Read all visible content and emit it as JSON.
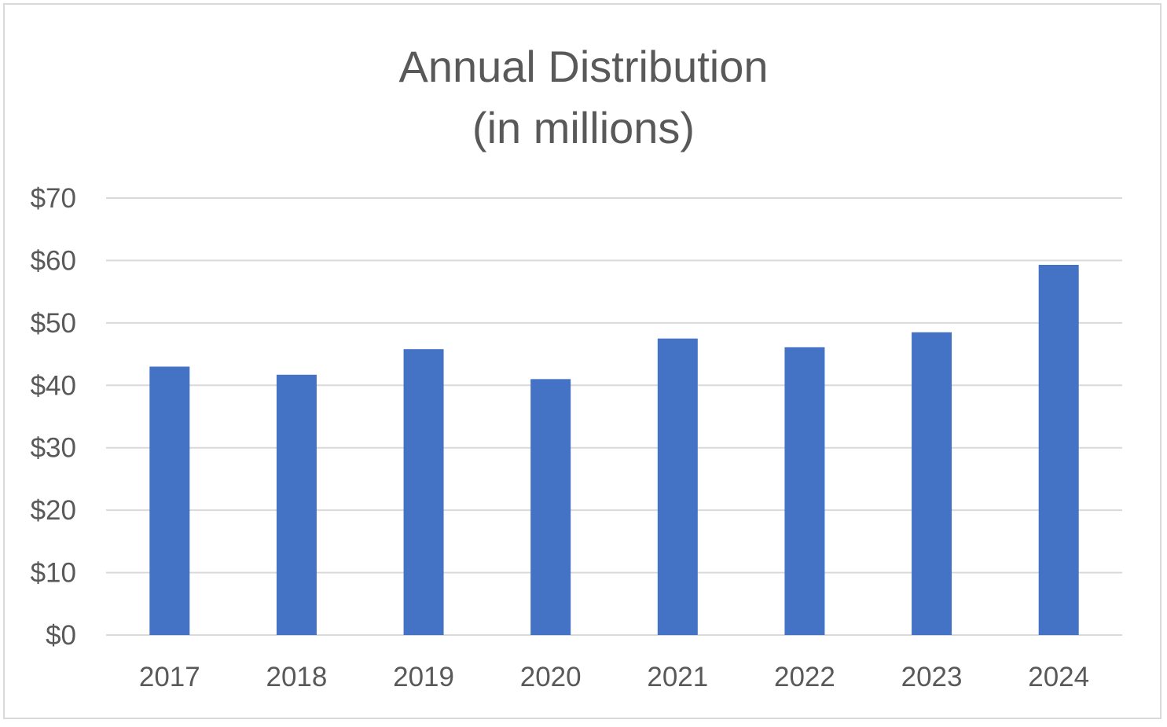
{
  "chart_data": {
    "type": "bar",
    "title": [
      "Annual Distribution",
      "(in millions)"
    ],
    "xlabel": "",
    "ylabel": "",
    "categories": [
      "2017",
      "2018",
      "2019",
      "2020",
      "2021",
      "2022",
      "2023",
      "2024"
    ],
    "values": [
      43,
      41.7,
      45.8,
      41,
      47.5,
      46.1,
      48.5,
      59.3
    ],
    "units": "millions of dollars",
    "ylim": [
      0,
      70
    ],
    "yticks": [
      0,
      10,
      20,
      30,
      40,
      50,
      60,
      70
    ],
    "ytick_labels": [
      "$0",
      "$10",
      "$20",
      "$30",
      "$40",
      "$50",
      "$60",
      "$70"
    ],
    "grid": true,
    "legend": "none",
    "colors": {
      "bar": "#4472c4",
      "grid": "#d9d9d9",
      "text": "#595959",
      "border": "#d9d9d9"
    }
  }
}
